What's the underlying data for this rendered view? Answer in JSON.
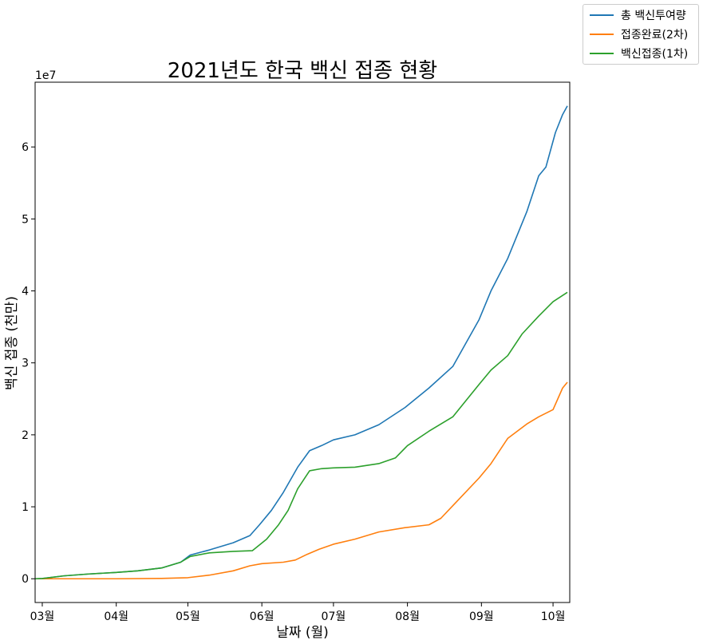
{
  "chart_data": {
    "type": "line",
    "title": "2021년도 한국 백신 접종 현황",
    "xlabel": "날짜 (월)",
    "ylabel": "백신 접종 (천만)",
    "y_offset_label": "1e7",
    "x_range": [
      "2021-02-26",
      "2021-10-08"
    ],
    "ylim": [
      -3300000,
      69000000
    ],
    "x_ticks": [
      {
        "date": "2021-03-01",
        "label": "03월"
      },
      {
        "date": "2021-04-01",
        "label": "04월"
      },
      {
        "date": "2021-05-01",
        "label": "05월"
      },
      {
        "date": "2021-06-01",
        "label": "06월"
      },
      {
        "date": "2021-07-01",
        "label": "07월"
      },
      {
        "date": "2021-08-01",
        "label": "08월"
      },
      {
        "date": "2021-09-01",
        "label": "09월"
      },
      {
        "date": "2021-10-01",
        "label": "10월"
      }
    ],
    "y_ticks": [
      {
        "value": 0,
        "label": "0"
      },
      {
        "value": 10000000,
        "label": "1"
      },
      {
        "value": 20000000,
        "label": "2"
      },
      {
        "value": 30000000,
        "label": "3"
      },
      {
        "value": 40000000,
        "label": "4"
      },
      {
        "value": 50000000,
        "label": "5"
      },
      {
        "value": 60000000,
        "label": "6"
      }
    ],
    "grid": false,
    "legend_position": "top-right outside",
    "series": [
      {
        "name": "총 백신투여량",
        "color": "#1f77b4",
        "points": [
          [
            "2021-02-26",
            0
          ],
          [
            "2021-03-01",
            30000
          ],
          [
            "2021-03-10",
            400000
          ],
          [
            "2021-03-20",
            650000
          ],
          [
            "2021-04-01",
            880000
          ],
          [
            "2021-04-10",
            1100000
          ],
          [
            "2021-04-20",
            1500000
          ],
          [
            "2021-04-28",
            2300000
          ],
          [
            "2021-05-02",
            3300000
          ],
          [
            "2021-05-10",
            4000000
          ],
          [
            "2021-05-20",
            5000000
          ],
          [
            "2021-05-27",
            6000000
          ],
          [
            "2021-05-31",
            7500000
          ],
          [
            "2021-06-05",
            9500000
          ],
          [
            "2021-06-10",
            12000000
          ],
          [
            "2021-06-16",
            15500000
          ],
          [
            "2021-06-21",
            17800000
          ],
          [
            "2021-06-26",
            18500000
          ],
          [
            "2021-07-01",
            19300000
          ],
          [
            "2021-07-10",
            20000000
          ],
          [
            "2021-07-20",
            21400000
          ],
          [
            "2021-07-31",
            23800000
          ],
          [
            "2021-08-10",
            26500000
          ],
          [
            "2021-08-20",
            29500000
          ],
          [
            "2021-08-31",
            36000000
          ],
          [
            "2021-09-05",
            40000000
          ],
          [
            "2021-09-12",
            44500000
          ],
          [
            "2021-09-20",
            51000000
          ],
          [
            "2021-09-25",
            56000000
          ],
          [
            "2021-09-28",
            57200000
          ],
          [
            "2021-10-02",
            62000000
          ],
          [
            "2021-10-05",
            64500000
          ],
          [
            "2021-10-07",
            65700000
          ]
        ]
      },
      {
        "name": "접종완료(2차)",
        "color": "#ff7f0e",
        "points": [
          [
            "2021-02-26",
            0
          ],
          [
            "2021-04-01",
            0
          ],
          [
            "2021-04-20",
            50000
          ],
          [
            "2021-05-01",
            150000
          ],
          [
            "2021-05-10",
            500000
          ],
          [
            "2021-05-20",
            1100000
          ],
          [
            "2021-05-27",
            1800000
          ],
          [
            "2021-06-01",
            2100000
          ],
          [
            "2021-06-10",
            2300000
          ],
          [
            "2021-06-15",
            2600000
          ],
          [
            "2021-06-20",
            3400000
          ],
          [
            "2021-06-25",
            4100000
          ],
          [
            "2021-07-01",
            4800000
          ],
          [
            "2021-07-10",
            5500000
          ],
          [
            "2021-07-20",
            6500000
          ],
          [
            "2021-07-31",
            7100000
          ],
          [
            "2021-08-10",
            7500000
          ],
          [
            "2021-08-15",
            8400000
          ],
          [
            "2021-08-21",
            10500000
          ],
          [
            "2021-08-31",
            14000000
          ],
          [
            "2021-09-05",
            16000000
          ],
          [
            "2021-09-12",
            19500000
          ],
          [
            "2021-09-20",
            21500000
          ],
          [
            "2021-09-25",
            22500000
          ],
          [
            "2021-10-01",
            23500000
          ],
          [
            "2021-10-05",
            26500000
          ],
          [
            "2021-10-07",
            27300000
          ]
        ]
      },
      {
        "name": "백신접종(1차)",
        "color": "#2ca02c",
        "points": [
          [
            "2021-02-26",
            0
          ],
          [
            "2021-03-01",
            30000
          ],
          [
            "2021-03-10",
            400000
          ],
          [
            "2021-03-20",
            650000
          ],
          [
            "2021-04-01",
            880000
          ],
          [
            "2021-04-10",
            1100000
          ],
          [
            "2021-04-20",
            1500000
          ],
          [
            "2021-04-28",
            2300000
          ],
          [
            "2021-05-02",
            3100000
          ],
          [
            "2021-05-10",
            3600000
          ],
          [
            "2021-05-20",
            3800000
          ],
          [
            "2021-05-28",
            3900000
          ],
          [
            "2021-06-03",
            5500000
          ],
          [
            "2021-06-08",
            7500000
          ],
          [
            "2021-06-12",
            9500000
          ],
          [
            "2021-06-16",
            12500000
          ],
          [
            "2021-06-21",
            15000000
          ],
          [
            "2021-06-26",
            15300000
          ],
          [
            "2021-07-01",
            15400000
          ],
          [
            "2021-07-10",
            15500000
          ],
          [
            "2021-07-20",
            16000000
          ],
          [
            "2021-07-27",
            16800000
          ],
          [
            "2021-08-01",
            18500000
          ],
          [
            "2021-08-10",
            20500000
          ],
          [
            "2021-08-20",
            22500000
          ],
          [
            "2021-08-31",
            27000000
          ],
          [
            "2021-09-05",
            29000000
          ],
          [
            "2021-09-12",
            31000000
          ],
          [
            "2021-09-18",
            34000000
          ],
          [
            "2021-09-25",
            36500000
          ],
          [
            "2021-10-01",
            38500000
          ],
          [
            "2021-10-07",
            39800000
          ]
        ]
      }
    ]
  }
}
